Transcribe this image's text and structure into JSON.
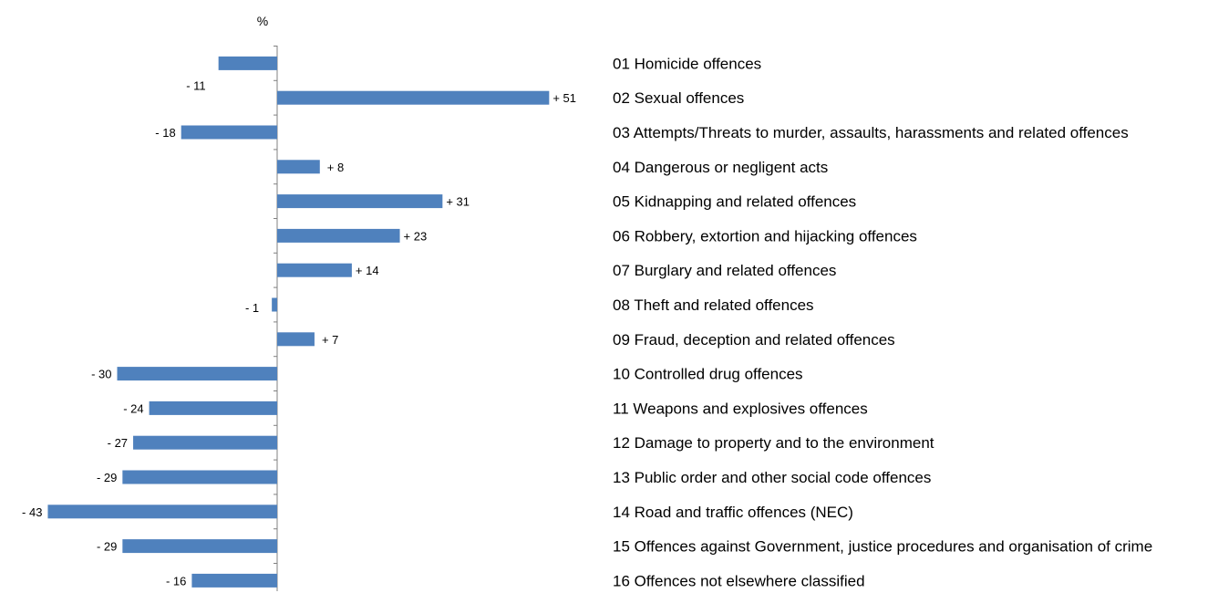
{
  "chart_data": {
    "type": "bar",
    "orientation": "horizontal",
    "unit_label": "%",
    "categories": [
      "01 Homicide offences",
      "02 Sexual offences",
      "03 Attempts/Threats to murder, assaults, harassments and related offences",
      "04 Dangerous or negligent acts",
      "05 Kidnapping and related offences",
      "06 Robbery, extortion and hijacking offences",
      "07 Burglary and related offences",
      "08 Theft and related offences",
      "09 Fraud, deception and related offences",
      "10 Controlled drug offences",
      "11 Weapons and explosives offences",
      "12 Damage to property and to the environment",
      "13 Public order and other social code offences",
      "14 Road and traffic offences (NEC)",
      "15 Offences against Government, justice procedures and organisation of crime",
      "16 Offences not elsewhere classified"
    ],
    "values": [
      -11,
      51,
      -18,
      8,
      31,
      23,
      14,
      -1,
      7,
      -30,
      -24,
      -27,
      -29,
      -43,
      -29,
      -16
    ],
    "value_labels": [
      "- 11",
      "+ 51",
      "- 18",
      "+  8",
      "+ 31",
      "+ 23",
      "+ 14",
      "-  1",
      "+  7",
      "- 30",
      "- 24",
      "- 27",
      "- 29",
      "- 43",
      "- 29",
      "- 16"
    ],
    "bar_color": "#4f81bd",
    "legend": "none",
    "grid": false
  }
}
